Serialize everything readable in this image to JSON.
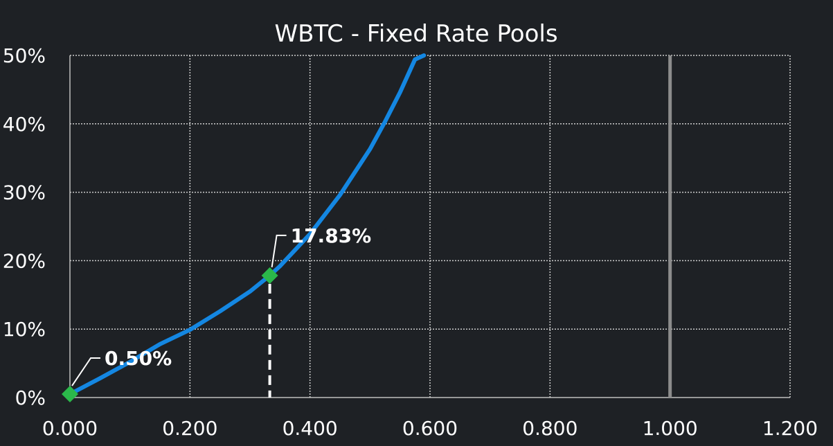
{
  "chart_data": {
    "type": "line",
    "title": "WBTC - Fixed Rate Pools",
    "xlabel": "",
    "ylabel": "",
    "xlim": [
      0,
      1.2
    ],
    "ylim": [
      0,
      0.5
    ],
    "x_ticks": [
      "0.000",
      "0.200",
      "0.400",
      "0.600",
      "0.800",
      "1.000",
      "1.200"
    ],
    "y_ticks": [
      "0%",
      "10%",
      "20%",
      "30%",
      "40%",
      "50%"
    ],
    "grid": true,
    "series": [
      {
        "color": "#1487e2",
        "x": [
          0.0,
          0.05,
          0.1,
          0.15,
          0.2,
          0.25,
          0.3,
          0.333,
          0.35,
          0.4,
          0.45,
          0.5,
          0.525,
          0.55,
          0.575,
          0.59
        ],
        "y": [
          0.005,
          0.028,
          0.052,
          0.078,
          0.099,
          0.126,
          0.155,
          0.1783,
          0.192,
          0.239,
          0.296,
          0.363,
          0.403,
          0.446,
          0.494,
          0.5
        ]
      }
    ],
    "highlight_points": [
      {
        "x": 0.0,
        "y": 0.005,
        "label": "0.50%",
        "color": "#2bb84a"
      },
      {
        "x": 0.333,
        "y": 0.1783,
        "label": "17.83%",
        "color": "#2bb84a"
      }
    ],
    "reference_line": {
      "x": 1.0,
      "color": "#8c8c8c"
    },
    "drop_line": {
      "x": 0.333,
      "y": 0.1783,
      "color": "#ffffff"
    }
  }
}
